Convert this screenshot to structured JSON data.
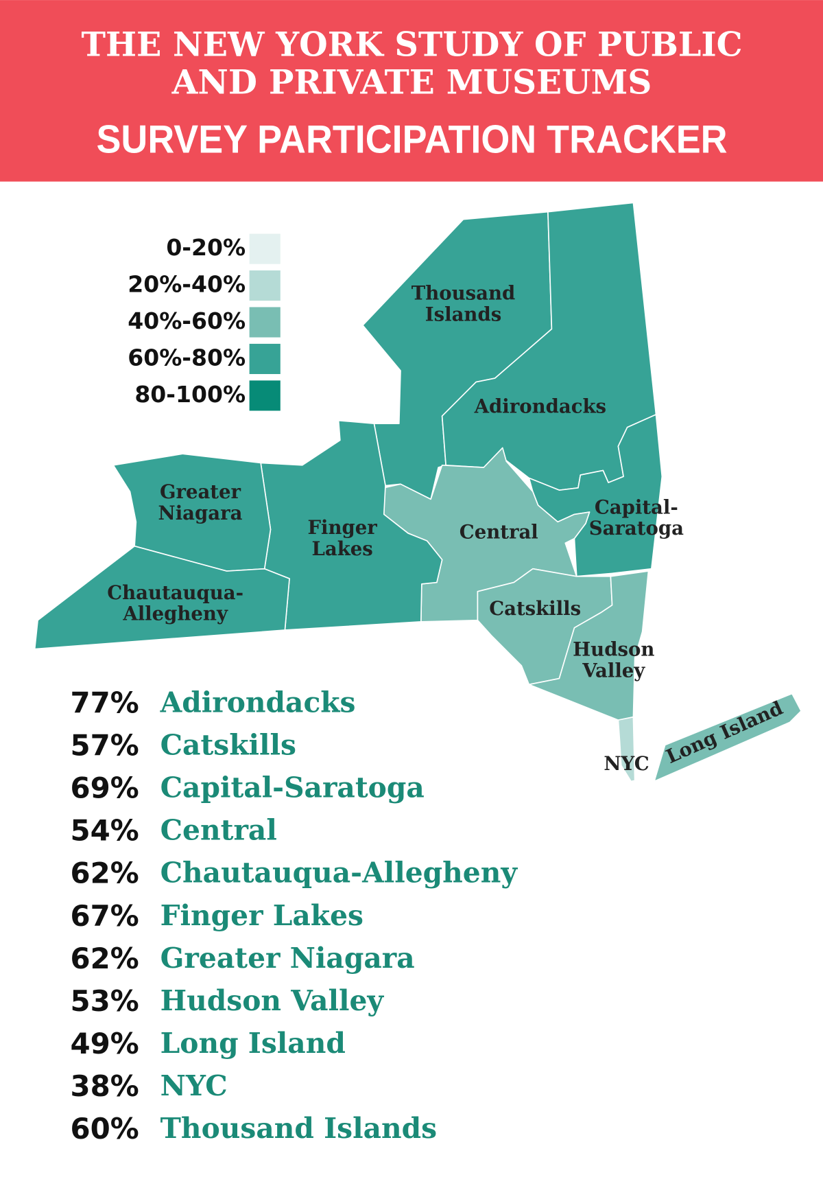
{
  "header": {
    "title_lines": [
      "THE NEW YORK STUDY OF PUBLIC",
      "AND PRIVATE MUSEUMS"
    ],
    "subtitle": "SURVEY PARTICIPATION TRACKER"
  },
  "legend": [
    {
      "label": "0-20%",
      "min": 0,
      "max": 20,
      "color": "#e4f1f0"
    },
    {
      "label": "20%-40%",
      "min": 20,
      "max": 40,
      "color": "#b5dbd6"
    },
    {
      "label": "40%-60%",
      "min": 40,
      "max": 60,
      "color": "#79beb3"
    },
    {
      "label": "60%-80%",
      "min": 60,
      "max": 80,
      "color": "#37a396"
    },
    {
      "label": "80-100%",
      "min": 80,
      "max": 100,
      "color": "#078b77"
    }
  ],
  "regions": [
    {
      "name": "Adirondacks",
      "value": 77,
      "value_label": "77%",
      "map_label": [
        "Adirondacks"
      ]
    },
    {
      "name": "Catskills",
      "value": 57,
      "value_label": "57%",
      "map_label": [
        "Catskills"
      ]
    },
    {
      "name": "Capital-Saratoga",
      "value": 69,
      "value_label": "69%",
      "map_label": [
        "Capital-",
        "Saratoga"
      ]
    },
    {
      "name": "Central",
      "value": 54,
      "value_label": "54%",
      "map_label": [
        "Central"
      ]
    },
    {
      "name": "Chautauqua-Allegheny",
      "value": 62,
      "value_label": "62%",
      "map_label": [
        "Chautauqua-",
        "Allegheny"
      ]
    },
    {
      "name": "Finger Lakes",
      "value": 67,
      "value_label": "67%",
      "map_label": [
        "Finger",
        "Lakes"
      ]
    },
    {
      "name": "Greater Niagara",
      "value": 62,
      "value_label": "62%",
      "map_label": [
        "Greater",
        "Niagara"
      ]
    },
    {
      "name": "Hudson Valley",
      "value": 53,
      "value_label": "53%",
      "map_label": [
        "Hudson",
        "Valley"
      ]
    },
    {
      "name": "Long Island",
      "value": 49,
      "value_label": "49%",
      "map_label": [
        "Long Island"
      ]
    },
    {
      "name": "NYC",
      "value": 38,
      "value_label": "38%",
      "map_label": [
        "NYC"
      ]
    },
    {
      "name": "Thousand Islands",
      "value": 60,
      "value_label": "60%",
      "map_label": [
        "Thousand",
        "Islands"
      ]
    }
  ]
}
